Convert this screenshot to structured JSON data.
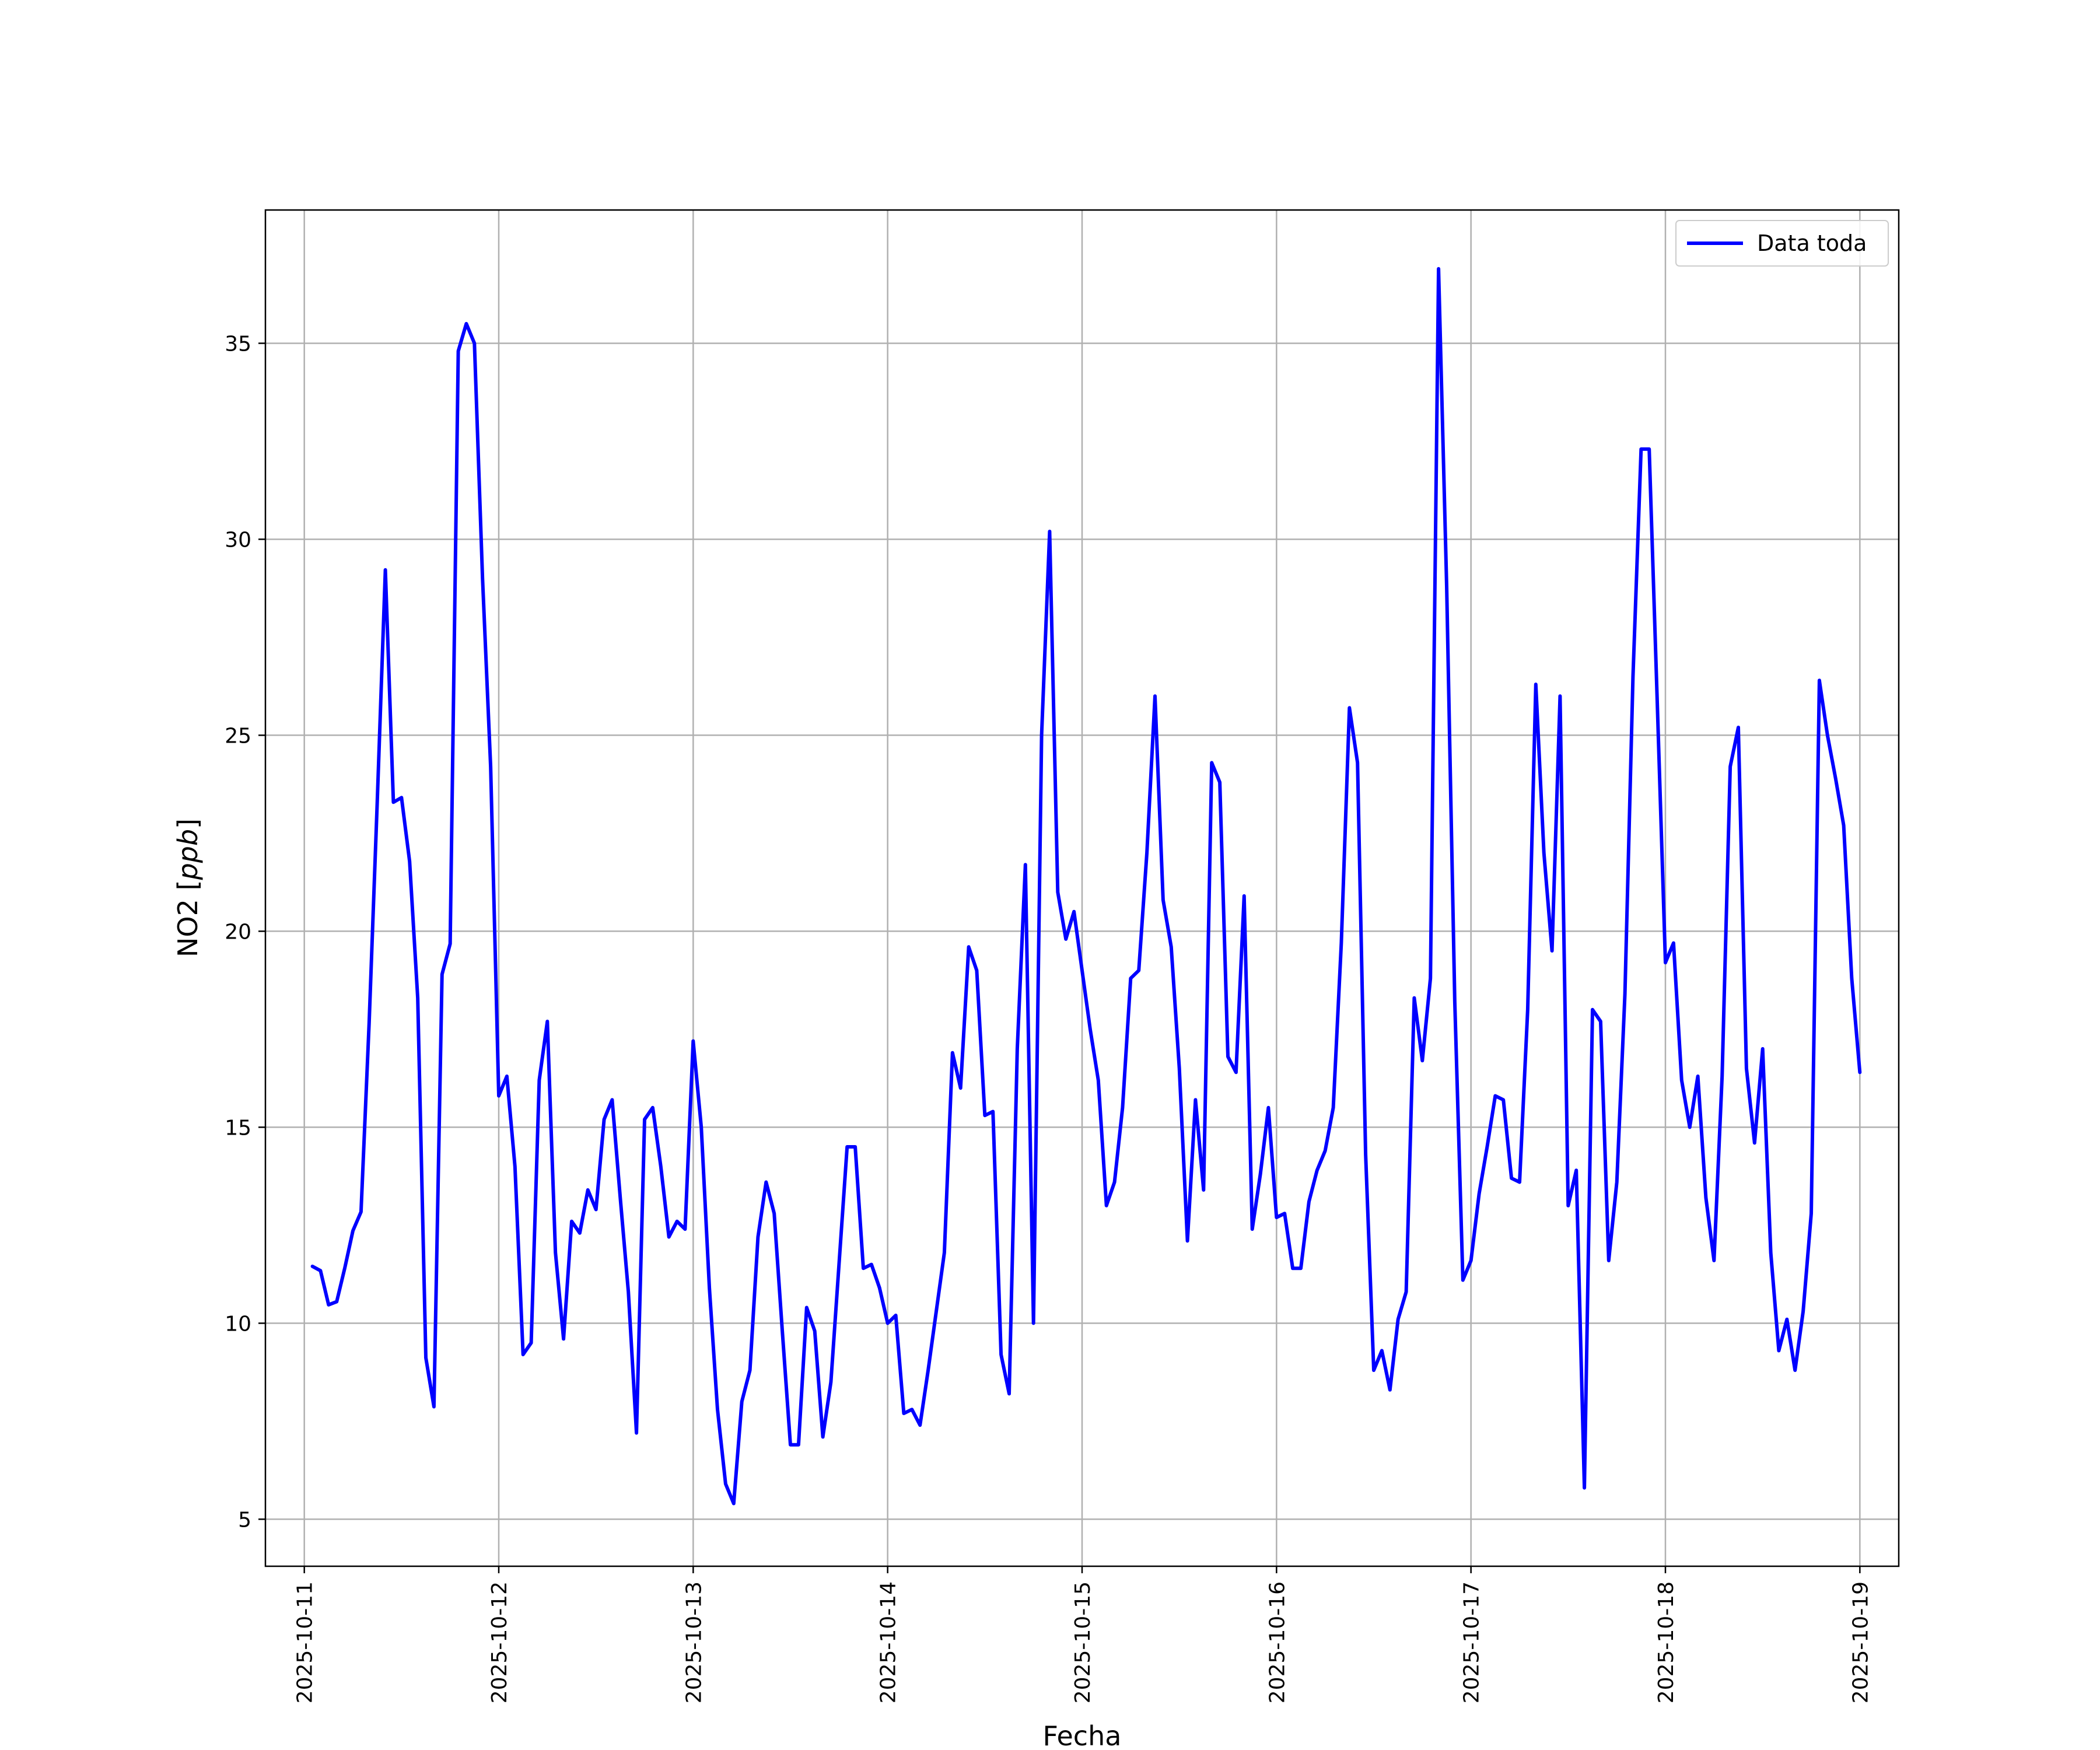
{
  "chart_data": {
    "type": "line",
    "title": "",
    "xlabel": "Fecha",
    "ylabel_text": "NO2",
    "ylabel_unit": "ppb",
    "x_type": "date",
    "xlim": [
      "2025-10-10 19:12",
      "2025-10-19 04:48"
    ],
    "ylim": [
      3.8,
      38.4
    ],
    "x_ticks": [
      "2025-10-11",
      "2025-10-12",
      "2025-10-13",
      "2025-10-14",
      "2025-10-15",
      "2025-10-16",
      "2025-10-17",
      "2025-10-18",
      "2025-10-19"
    ],
    "y_ticks": [
      5,
      10,
      15,
      20,
      25,
      30,
      35
    ],
    "grid": true,
    "legend_position": "top-right",
    "series": [
      {
        "name": "Data toda",
        "color": "#0000ff",
        "x": [
          "2025-10-11 01:00",
          "2025-10-11 02:00",
          "2025-10-11 03:00",
          "2025-10-11 04:00",
          "2025-10-11 05:00",
          "2025-10-11 06:00",
          "2025-10-11 07:00",
          "2025-10-11 08:00",
          "2025-10-11 09:00",
          "2025-10-11 10:00",
          "2025-10-11 11:00",
          "2025-10-11 12:00",
          "2025-10-11 13:00",
          "2025-10-11 14:00",
          "2025-10-11 15:00",
          "2025-10-11 16:00",
          "2025-10-11 17:00",
          "2025-10-11 18:00",
          "2025-10-11 19:00",
          "2025-10-11 20:00",
          "2025-10-11 21:00",
          "2025-10-11 22:00",
          "2025-10-11 23:00",
          "2025-10-12 00:00",
          "2025-10-12 01:00",
          "2025-10-12 02:00",
          "2025-10-12 03:00",
          "2025-10-12 04:00",
          "2025-10-12 05:00",
          "2025-10-12 06:00",
          "2025-10-12 07:00",
          "2025-10-12 08:00",
          "2025-10-12 09:00",
          "2025-10-12 10:00",
          "2025-10-12 11:00",
          "2025-10-12 12:00",
          "2025-10-12 13:00",
          "2025-10-12 14:00",
          "2025-10-12 15:00",
          "2025-10-12 16:00",
          "2025-10-12 17:00",
          "2025-10-12 18:00",
          "2025-10-12 19:00",
          "2025-10-12 20:00",
          "2025-10-12 21:00",
          "2025-10-12 22:00",
          "2025-10-12 23:00",
          "2025-10-13 00:00",
          "2025-10-13 01:00",
          "2025-10-13 02:00",
          "2025-10-13 03:00",
          "2025-10-13 04:00",
          "2025-10-13 05:00",
          "2025-10-13 06:00",
          "2025-10-13 07:00",
          "2025-10-13 08:00",
          "2025-10-13 09:00",
          "2025-10-13 10:00",
          "2025-10-13 11:00",
          "2025-10-13 12:00",
          "2025-10-13 13:00",
          "2025-10-13 14:00",
          "2025-10-13 15:00",
          "2025-10-13 16:00",
          "2025-10-13 17:00",
          "2025-10-13 18:00",
          "2025-10-13 19:00",
          "2025-10-13 20:00",
          "2025-10-13 21:00",
          "2025-10-13 22:00",
          "2025-10-13 23:00",
          "2025-10-14 00:00",
          "2025-10-14 01:00",
          "2025-10-14 02:00",
          "2025-10-14 03:00",
          "2025-10-14 04:00",
          "2025-10-14 05:00",
          "2025-10-14 06:00",
          "2025-10-14 07:00",
          "2025-10-14 08:00",
          "2025-10-14 09:00",
          "2025-10-14 10:00",
          "2025-10-14 11:00",
          "2025-10-14 12:00",
          "2025-10-14 13:00",
          "2025-10-14 14:00",
          "2025-10-14 15:00",
          "2025-10-14 16:00",
          "2025-10-14 17:00",
          "2025-10-14 18:00",
          "2025-10-14 19:00",
          "2025-10-14 20:00",
          "2025-10-14 21:00",
          "2025-10-14 22:00",
          "2025-10-14 23:00",
          "2025-10-15 00:00",
          "2025-10-15 01:00",
          "2025-10-15 02:00",
          "2025-10-15 03:00",
          "2025-10-15 04:00",
          "2025-10-15 05:00",
          "2025-10-15 06:00",
          "2025-10-15 07:00",
          "2025-10-15 08:00",
          "2025-10-15 09:00",
          "2025-10-15 10:00",
          "2025-10-15 11:00",
          "2025-10-15 12:00",
          "2025-10-15 13:00",
          "2025-10-15 14:00",
          "2025-10-15 15:00",
          "2025-10-15 16:00",
          "2025-10-15 17:00",
          "2025-10-15 18:00",
          "2025-10-15 19:00",
          "2025-10-15 20:00",
          "2025-10-15 21:00",
          "2025-10-15 22:00",
          "2025-10-15 23:00",
          "2025-10-16 00:00",
          "2025-10-16 01:00",
          "2025-10-16 02:00",
          "2025-10-16 03:00",
          "2025-10-16 04:00",
          "2025-10-16 05:00",
          "2025-10-16 06:00",
          "2025-10-16 07:00",
          "2025-10-16 08:00",
          "2025-10-16 09:00",
          "2025-10-16 10:00",
          "2025-10-16 11:00",
          "2025-10-16 12:00",
          "2025-10-16 13:00",
          "2025-10-16 14:00",
          "2025-10-16 15:00",
          "2025-10-16 16:00",
          "2025-10-16 17:00",
          "2025-10-16 18:00",
          "2025-10-16 19:00",
          "2025-10-16 20:00",
          "2025-10-16 21:00",
          "2025-10-16 22:00",
          "2025-10-16 23:00",
          "2025-10-17 00:00",
          "2025-10-17 01:00",
          "2025-10-17 02:00",
          "2025-10-17 03:00",
          "2025-10-17 04:00",
          "2025-10-17 05:00",
          "2025-10-17 06:00",
          "2025-10-17 07:00",
          "2025-10-17 08:00",
          "2025-10-17 09:00",
          "2025-10-17 10:00",
          "2025-10-17 11:00",
          "2025-10-17 12:00",
          "2025-10-17 13:00",
          "2025-10-17 14:00",
          "2025-10-17 15:00",
          "2025-10-17 16:00",
          "2025-10-17 17:00",
          "2025-10-17 18:00",
          "2025-10-17 19:00",
          "2025-10-17 20:00",
          "2025-10-17 21:00",
          "2025-10-17 22:00",
          "2025-10-17 23:00",
          "2025-10-18 00:00",
          "2025-10-18 01:00",
          "2025-10-18 02:00",
          "2025-10-18 03:00",
          "2025-10-18 04:00",
          "2025-10-18 05:00",
          "2025-10-18 06:00",
          "2025-10-18 07:00",
          "2025-10-18 08:00",
          "2025-10-18 09:00",
          "2025-10-18 10:00",
          "2025-10-18 11:00",
          "2025-10-18 12:00",
          "2025-10-18 13:00",
          "2025-10-18 14:00",
          "2025-10-18 15:00",
          "2025-10-18 16:00",
          "2025-10-18 17:00",
          "2025-10-18 18:00",
          "2025-10-18 19:00",
          "2025-10-18 20:00",
          "2025-10-18 21:00",
          "2025-10-18 22:00",
          "2025-10-18 23:00",
          "2025-10-19 00:00"
        ],
        "y": [
          11.45,
          11.34,
          10.47,
          10.55,
          11.41,
          12.36,
          12.84,
          17.66,
          23.3,
          29.22,
          23.29,
          23.41,
          21.78,
          18.3,
          9.12,
          7.87,
          18.9,
          19.68,
          34.8,
          35.5,
          35.0,
          29.0,
          24.2,
          15.8,
          16.3,
          14.0,
          9.2,
          9.5,
          16.2,
          17.7,
          11.8,
          9.6,
          12.6,
          12.3,
          13.4,
          12.9,
          15.2,
          15.7,
          13.2,
          10.8,
          7.2,
          15.2,
          15.5,
          14.0,
          12.2,
          12.6,
          12.4,
          17.2,
          15.0,
          10.9,
          7.8,
          5.9,
          5.4,
          8.0,
          8.8,
          12.2,
          13.6,
          12.8,
          9.8,
          6.9,
          6.9,
          10.4,
          9.8,
          7.1,
          8.5,
          11.5,
          14.5,
          14.5,
          11.4,
          11.5,
          10.9,
          10.0,
          10.2,
          7.7,
          7.8,
          7.4,
          8.8,
          10.3,
          11.8,
          16.9,
          16.0,
          19.6,
          19.0,
          15.3,
          15.4,
          9.2,
          8.2,
          17.0,
          21.7,
          10.0,
          25.0,
          30.2,
          21.0,
          19.8,
          20.5,
          19.0,
          17.5,
          16.2,
          13.0,
          13.6,
          15.5,
          18.8,
          19.0,
          22.0,
          26.0,
          20.8,
          19.6,
          16.5,
          12.1,
          15.7,
          13.4,
          24.3,
          23.8,
          16.8,
          16.4,
          20.9,
          12.4,
          13.8,
          15.5,
          12.7,
          12.8,
          11.4,
          11.4,
          13.1,
          13.9,
          14.4,
          15.5,
          19.7,
          25.7,
          24.3,
          14.3,
          8.8,
          9.3,
          8.3,
          10.1,
          10.8,
          18.3,
          16.7,
          18.8,
          36.9,
          28.8,
          18.2,
          11.1,
          11.6,
          13.3,
          14.5,
          15.8,
          15.7,
          13.7,
          13.6,
          18.0,
          26.3,
          22.0,
          19.5,
          26.0,
          13.0,
          13.9,
          5.8,
          18.0,
          17.7,
          11.6,
          13.6,
          18.4,
          26.5,
          32.3,
          32.3,
          25.8,
          19.2,
          19.7,
          16.2,
          15.0,
          16.3,
          13.2,
          11.6,
          16.3,
          24.2,
          25.2,
          16.5,
          14.6,
          17.0,
          11.8,
          9.3,
          10.1,
          8.8,
          10.3,
          12.8,
          26.4,
          25.0,
          23.9,
          22.7,
          18.8,
          16.4
        ]
      }
    ]
  }
}
